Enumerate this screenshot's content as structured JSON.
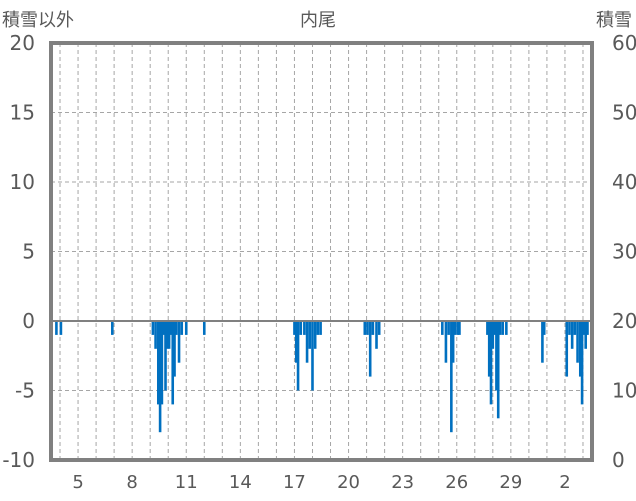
{
  "chart_data": {
    "type": "bar",
    "title": "内尾",
    "left_axis": {
      "label": "積雪以外",
      "ylim": [
        -10,
        20
      ],
      "ticks": [
        "20",
        "15",
        "10",
        "5",
        "0",
        "-5",
        "-10"
      ]
    },
    "right_axis": {
      "label": "積雪",
      "ylim": [
        0,
        60
      ],
      "ticks": [
        "60",
        "50",
        "40",
        "30",
        "20",
        "10",
        "0"
      ]
    },
    "x_tick_labels": [
      "5",
      "8",
      "11",
      "14",
      "17",
      "20",
      "23",
      "26",
      "29",
      "2"
    ],
    "grid": true,
    "series_color": "#0070C0",
    "series": [
      {
        "values": [
          {
            "x": 3.8,
            "y": -1
          },
          {
            "x": 4.05,
            "y": -1
          },
          {
            "x": 6.9,
            "y": -1
          },
          {
            "x": 9.15,
            "y": -1
          },
          {
            "x": 9.3,
            "y": -2
          },
          {
            "x": 9.45,
            "y": -6
          },
          {
            "x": 9.55,
            "y": -8
          },
          {
            "x": 9.65,
            "y": -6
          },
          {
            "x": 9.75,
            "y": -1
          },
          {
            "x": 9.85,
            "y": -5
          },
          {
            "x": 9.95,
            "y": -2
          },
          {
            "x": 10.05,
            "y": -2
          },
          {
            "x": 10.15,
            "y": -1
          },
          {
            "x": 10.25,
            "y": -6
          },
          {
            "x": 10.35,
            "y": -4
          },
          {
            "x": 10.45,
            "y": -1
          },
          {
            "x": 10.6,
            "y": -3
          },
          {
            "x": 10.75,
            "y": -1
          },
          {
            "x": 11.0,
            "y": -1
          },
          {
            "x": 12.0,
            "y": -1
          },
          {
            "x": 17.0,
            "y": -1
          },
          {
            "x": 17.1,
            "y": -3
          },
          {
            "x": 17.2,
            "y": -5
          },
          {
            "x": 17.35,
            "y": -1
          },
          {
            "x": 17.55,
            "y": -1
          },
          {
            "x": 17.7,
            "y": -3
          },
          {
            "x": 17.85,
            "y": -2
          },
          {
            "x": 18.0,
            "y": -5
          },
          {
            "x": 18.15,
            "y": -2
          },
          {
            "x": 18.3,
            "y": -1
          },
          {
            "x": 18.45,
            "y": -1
          },
          {
            "x": 20.9,
            "y": -1
          },
          {
            "x": 21.05,
            "y": -1
          },
          {
            "x": 21.2,
            "y": -4
          },
          {
            "x": 21.35,
            "y": -1
          },
          {
            "x": 21.55,
            "y": -2
          },
          {
            "x": 21.7,
            "y": -1
          },
          {
            "x": 25.2,
            "y": -1
          },
          {
            "x": 25.4,
            "y": -3
          },
          {
            "x": 25.55,
            "y": -1
          },
          {
            "x": 25.7,
            "y": -8
          },
          {
            "x": 25.8,
            "y": -3
          },
          {
            "x": 25.9,
            "y": -1
          },
          {
            "x": 26.05,
            "y": -1
          },
          {
            "x": 26.15,
            "y": -1
          },
          {
            "x": 27.7,
            "y": -1
          },
          {
            "x": 27.8,
            "y": -4
          },
          {
            "x": 27.9,
            "y": -6
          },
          {
            "x": 28.0,
            "y": -2
          },
          {
            "x": 28.1,
            "y": -1
          },
          {
            "x": 28.2,
            "y": -5
          },
          {
            "x": 28.3,
            "y": -7
          },
          {
            "x": 28.4,
            "y": -1
          },
          {
            "x": 28.55,
            "y": -1
          },
          {
            "x": 28.75,
            "y": -1
          },
          {
            "x": 30.75,
            "y": -3
          },
          {
            "x": 30.85,
            "y": -1
          },
          {
            "x": 32.1,
            "y": -4
          },
          {
            "x": 32.25,
            "y": -1
          },
          {
            "x": 32.4,
            "y": -2
          },
          {
            "x": 32.55,
            "y": -1
          },
          {
            "x": 32.7,
            "y": -3
          },
          {
            "x": 32.85,
            "y": -4
          },
          {
            "x": 32.95,
            "y": -6
          },
          {
            "x": 33.05,
            "y": -1
          },
          {
            "x": 33.15,
            "y": -2
          },
          {
            "x": 33.25,
            "y": -1
          }
        ]
      }
    ]
  }
}
